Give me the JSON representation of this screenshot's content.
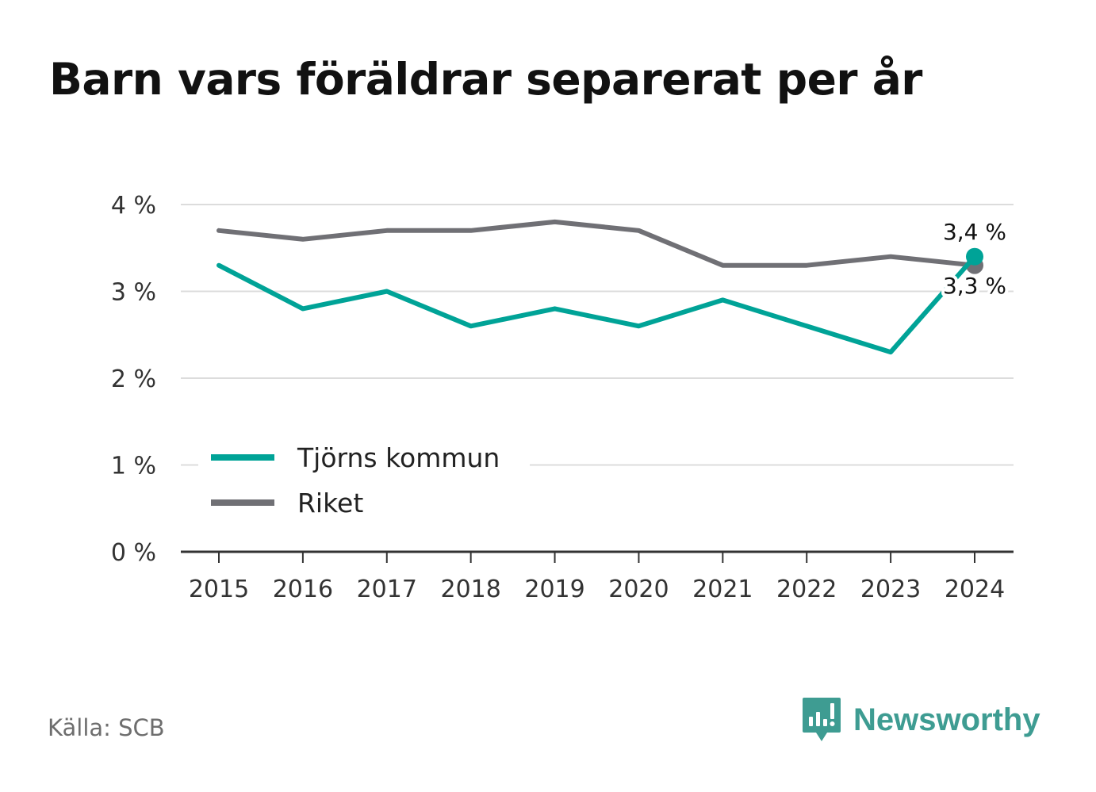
{
  "title": "Barn vars föräldrar separerat per år",
  "source": "Källa: SCB",
  "brand": {
    "name": "Newsworthy",
    "icon": "newsworthy-bar-chart-logo-icon",
    "color": "#3e9c92"
  },
  "chart_data": {
    "type": "line",
    "x": [
      "2015",
      "2016",
      "2017",
      "2018",
      "2019",
      "2020",
      "2021",
      "2022",
      "2023",
      "2024"
    ],
    "series": [
      {
        "name": "Tjörns kommun",
        "color": "#00a397",
        "values": [
          3.3,
          2.8,
          3.0,
          2.6,
          2.8,
          2.6,
          2.9,
          2.6,
          2.3,
          3.4
        ]
      },
      {
        "name": "Riket",
        "color": "#707075",
        "values": [
          3.7,
          3.6,
          3.7,
          3.7,
          3.8,
          3.7,
          3.3,
          3.3,
          3.4,
          3.3
        ]
      }
    ],
    "ylim": [
      0,
      4
    ],
    "yticks": [
      {
        "value": 0,
        "label": "0 %"
      },
      {
        "value": 1,
        "label": "1 %"
      },
      {
        "value": 2,
        "label": "2 %"
      },
      {
        "value": 3,
        "label": "3 %"
      },
      {
        "value": 4,
        "label": "4 %"
      }
    ],
    "end_labels": [
      "3,4 %",
      "3,3 %"
    ],
    "grid": true,
    "legend_position": "lower-left",
    "xlabel": "",
    "ylabel": ""
  }
}
